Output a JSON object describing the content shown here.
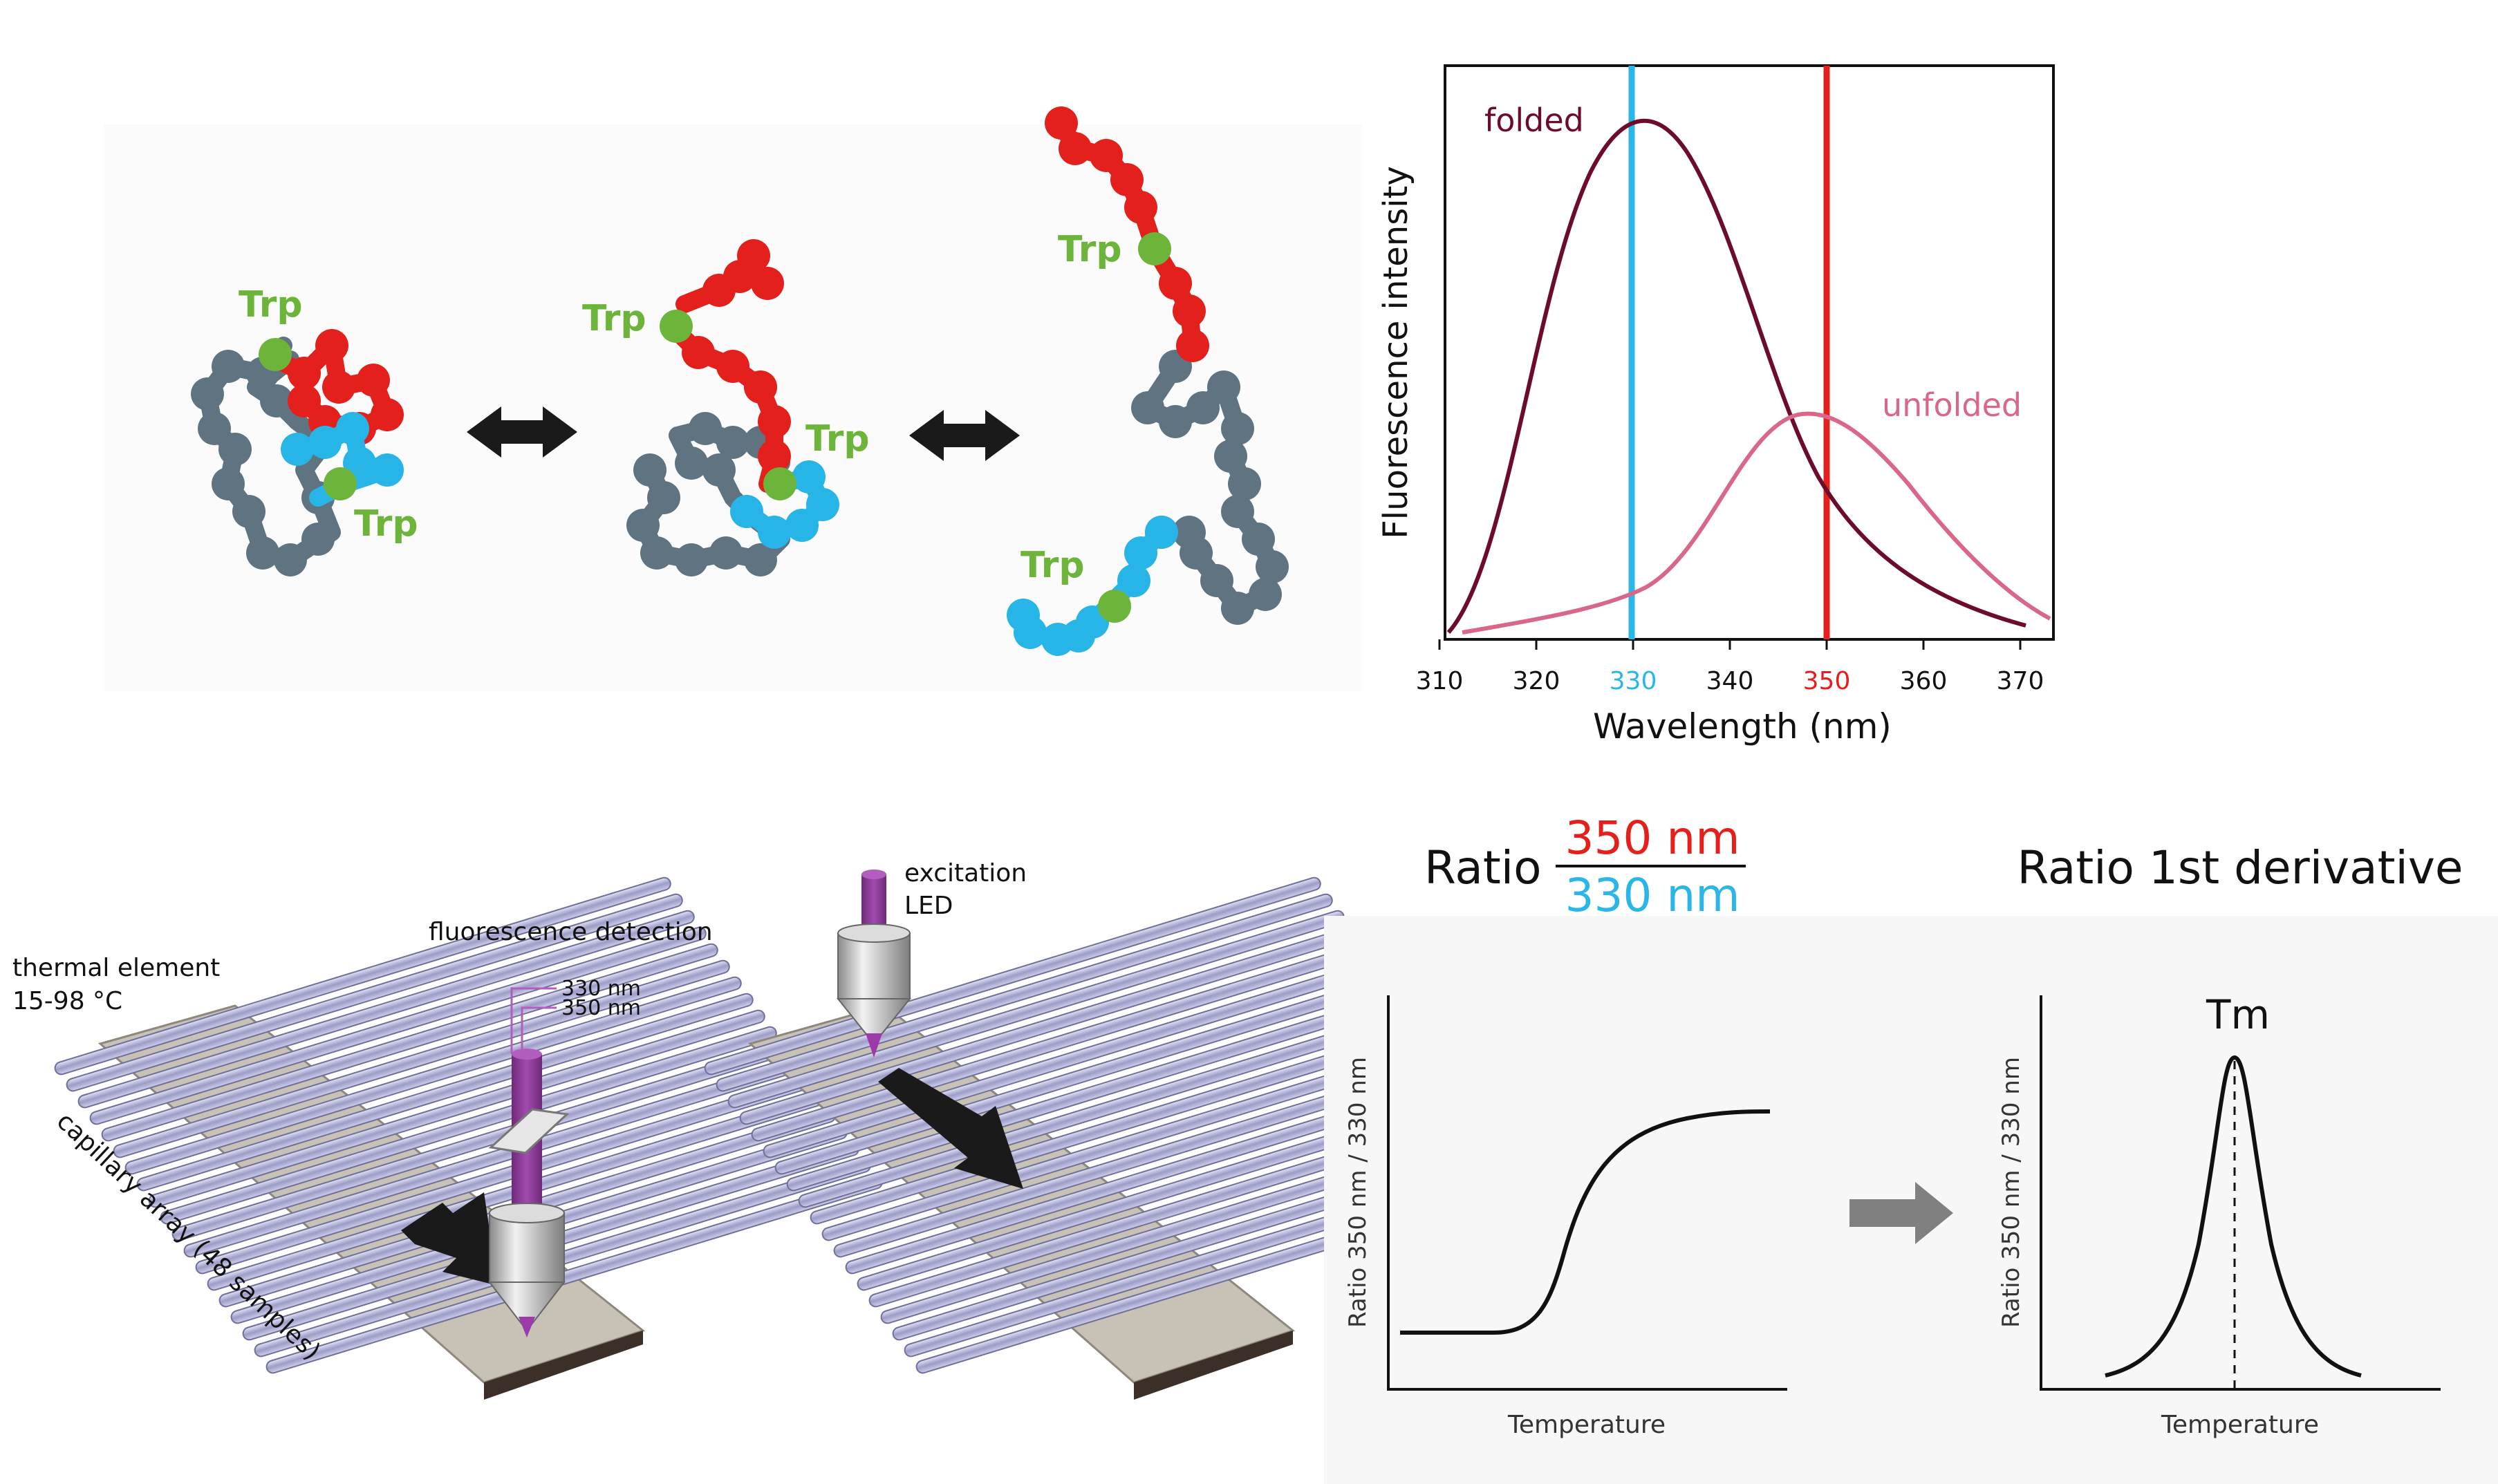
{
  "protein_panel": {
    "label_trp": "Trp"
  },
  "spectrum_chart": {
    "ylabel": "Fluorescence intensity",
    "xlabel": "Wavelength (nm)",
    "label_folded": "folded",
    "label_unfolded": "unfolded",
    "xticks": [
      "310",
      "320",
      "330",
      "340",
      "350",
      "360",
      "370"
    ],
    "colors": {
      "folded": "#6d0c2a",
      "unfolded": "#d9678a",
      "line330": "#2ab6e6",
      "line350": "#e3201b"
    }
  },
  "instrument": {
    "thermal_element": "thermal element",
    "thermal_range": "15-98 °C",
    "capillary_array": "capillary array (48 samples)",
    "fluorescence_detection": "fluorescence detection",
    "wl_330": "330 nm",
    "wl_350": "350 nm",
    "excitation_line1": "excitation",
    "excitation_line2": "LED"
  },
  "ratio_header": {
    "ratio_word": "Ratio",
    "numerator": "350 nm",
    "denominator": "330 nm",
    "derivative_title": "Ratio 1st derivative"
  },
  "ratio_plots": {
    "ratio_ylabel": "Ratio 350 nm / 330 nm",
    "ratio_xlabel": "Temperature",
    "deriv_ylabel": "Ratio 350 nm / 330 nm",
    "deriv_xlabel": "Temperature",
    "tm_label": "Tm"
  }
}
